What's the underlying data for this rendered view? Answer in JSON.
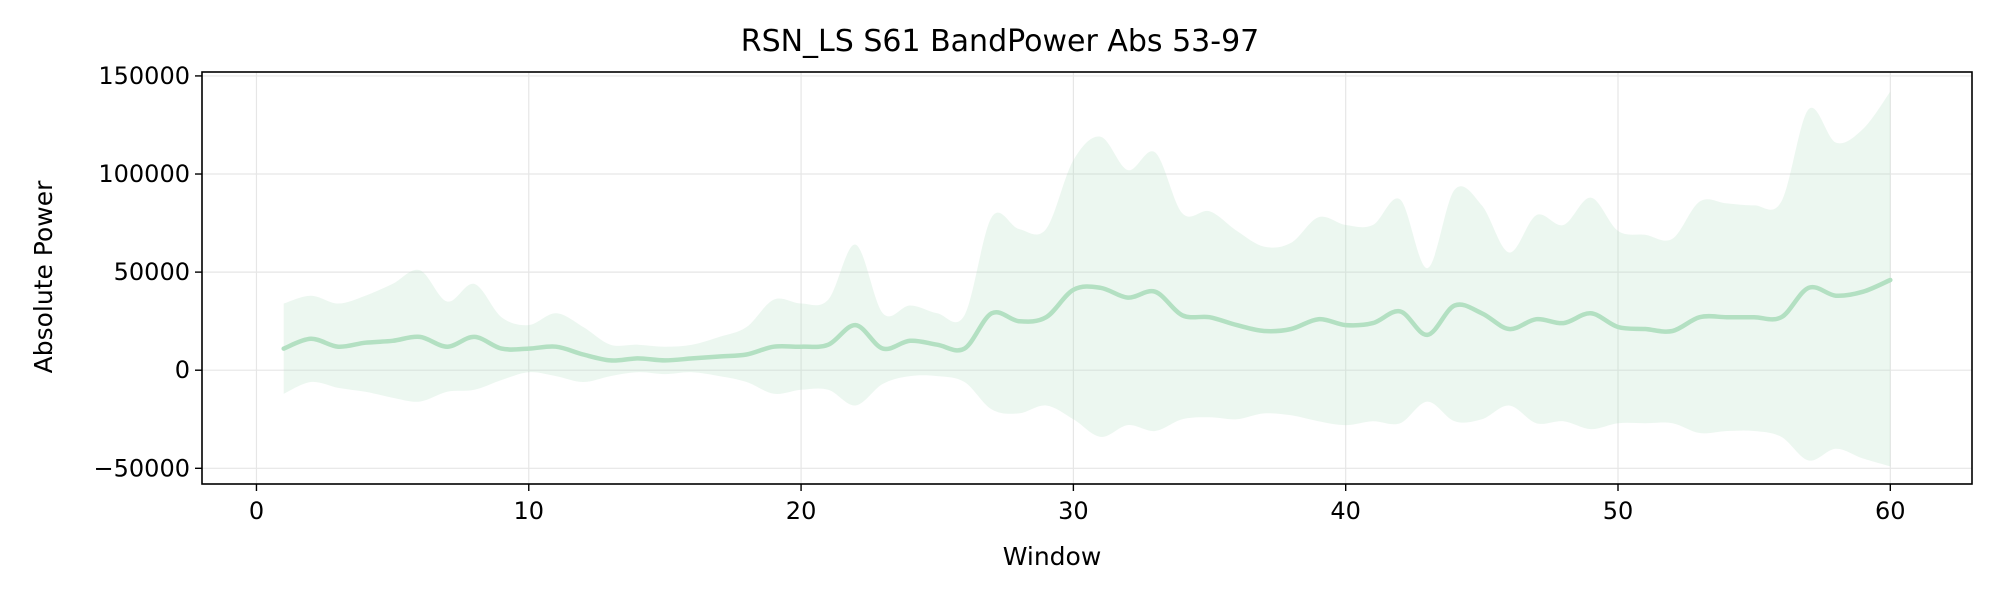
{
  "chart_data": {
    "type": "line",
    "title": "RSN_LS S61 BandPower Abs 53-97",
    "xlabel": "Window",
    "ylabel": "Absolute Power",
    "xlim": [
      -2,
      63
    ],
    "ylim": [
      -58000,
      152000
    ],
    "xticks": [
      0,
      10,
      20,
      30,
      40,
      50,
      60
    ],
    "yticks": [
      -50000,
      0,
      50000,
      100000,
      150000
    ],
    "xtick_labels": [
      "0",
      "10",
      "20",
      "30",
      "40",
      "50",
      "60"
    ],
    "ytick_labels": [
      "−50000",
      "0",
      "50000",
      "100000",
      "150000"
    ],
    "grid": true,
    "legend": "none",
    "colors": {
      "line": "#b3e0c2",
      "band": "#b3e0c2"
    },
    "x": [
      1,
      2,
      3,
      4,
      5,
      6,
      7,
      8,
      9,
      10,
      11,
      12,
      13,
      14,
      15,
      16,
      17,
      18,
      19,
      20,
      21,
      22,
      23,
      24,
      25,
      26,
      27,
      28,
      29,
      30,
      31,
      32,
      33,
      34,
      35,
      36,
      37,
      38,
      39,
      40,
      41,
      42,
      43,
      44,
      45,
      46,
      47,
      48,
      49,
      50,
      51,
      52,
      53,
      54,
      55,
      56,
      57,
      58,
      59,
      60
    ],
    "series": [
      {
        "mean": [
          11000,
          16000,
          12000,
          14000,
          15000,
          17000,
          12000,
          17000,
          11000,
          11000,
          12000,
          8000,
          5000,
          6000,
          5000,
          6000,
          7000,
          8000,
          12000,
          12000,
          13000,
          23000,
          11000,
          15000,
          13000,
          11000,
          29000,
          25000,
          27000,
          41000,
          42000,
          37000,
          40000,
          28000,
          27000,
          23000,
          20000,
          21000,
          26000,
          23000,
          24000,
          30000,
          18000,
          33000,
          29000,
          21000,
          26000,
          24000,
          29000,
          22000,
          21000,
          20000,
          27000,
          27000,
          27000,
          27000,
          42000,
          38000,
          40000,
          46000
        ],
        "upper": [
          34000,
          38000,
          34000,
          38000,
          44000,
          51000,
          35000,
          44000,
          27000,
          23000,
          29000,
          22000,
          13000,
          13000,
          12000,
          13000,
          17000,
          22000,
          36000,
          34000,
          36000,
          64000,
          29000,
          33000,
          29000,
          28000,
          78000,
          72000,
          72000,
          107000,
          119000,
          102000,
          111000,
          80000,
          81000,
          71000,
          63000,
          65000,
          78000,
          74000,
          74000,
          87000,
          52000,
          92000,
          84000,
          60000,
          79000,
          74000,
          88000,
          71000,
          69000,
          67000,
          86000,
          85000,
          84000,
          86000,
          133000,
          116000,
          123000,
          142000
        ],
        "lower": [
          -12000,
          -6000,
          -9000,
          -11000,
          -14000,
          -16000,
          -11000,
          -10000,
          -5000,
          -1000,
          -3000,
          -6000,
          -3000,
          -1000,
          -2000,
          -1000,
          -3000,
          -6000,
          -12000,
          -10000,
          -10000,
          -18000,
          -7000,
          -3000,
          -3000,
          -6000,
          -20000,
          -22000,
          -18000,
          -25000,
          -34000,
          -28000,
          -31000,
          -25000,
          -24000,
          -25000,
          -22000,
          -23000,
          -26000,
          -28000,
          -26000,
          -27000,
          -16000,
          -26000,
          -25000,
          -18000,
          -27000,
          -26000,
          -30000,
          -27000,
          -27000,
          -27000,
          -32000,
          -31000,
          -31000,
          -34000,
          -46000,
          -40000,
          -45000,
          -49000
        ]
      }
    ]
  }
}
